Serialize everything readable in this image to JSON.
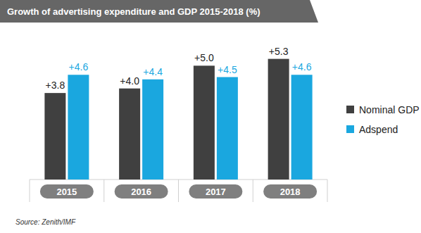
{
  "chart_data": {
    "type": "bar",
    "title": "Growth of advertising expenditure and GDP 2015-2018 (%)",
    "source": "Source: Zenith/IMF",
    "categories": [
      "2015",
      "2016",
      "2017",
      "2018"
    ],
    "series": [
      {
        "name": "Nominal GDP",
        "color": "#404040",
        "values": [
          3.8,
          4.0,
          5.0,
          5.3
        ],
        "value_labels": [
          "+3.8",
          "+4.0",
          "+5.0",
          "+5.3"
        ]
      },
      {
        "name": "Adspend",
        "color": "#1aa7df",
        "values": [
          4.6,
          4.4,
          4.5,
          4.6
        ],
        "value_labels": [
          "+4.6",
          "+4.4",
          "+4.5",
          "+4.6"
        ]
      }
    ],
    "ylim": [
      0,
      6
    ],
    "tick_labels": "x",
    "data_labels": true,
    "legend": "right",
    "grid": false
  }
}
